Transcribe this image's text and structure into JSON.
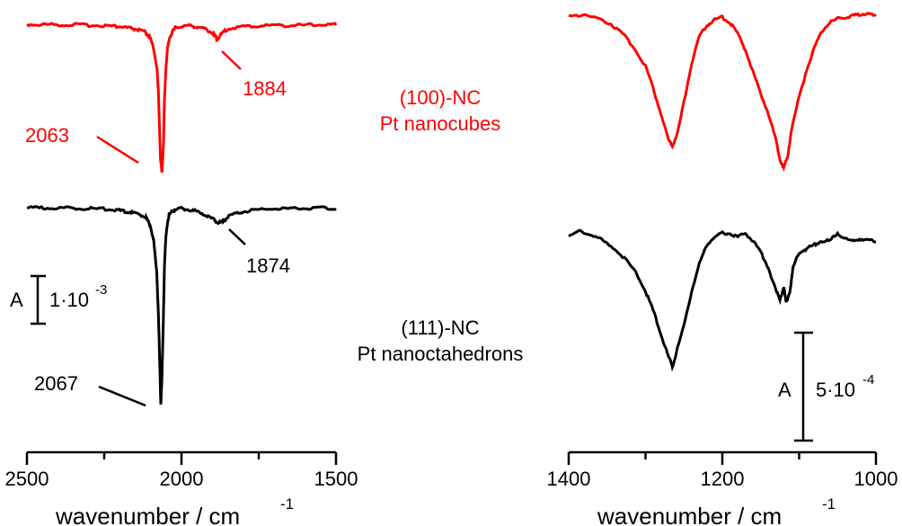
{
  "chart_data": [
    {
      "type": "line",
      "panel": "left",
      "xlabel": "wavenumber / cm",
      "xlabel_sup": "-1",
      "xlim": [
        2500,
        1500
      ],
      "xticks": [
        2500,
        2000,
        1500
      ],
      "scale_bar": {
        "symbol": "A",
        "value": "1·10",
        "exponent": "-3"
      },
      "series": [
        {
          "name": "(100)-NC Pt nanocubes",
          "color": "#ff0000",
          "baseline": 0,
          "x": [
            2500,
            2460,
            2420,
            2380,
            2340,
            2300,
            2260,
            2220,
            2200,
            2180,
            2160,
            2140,
            2120,
            2110,
            2100,
            2090,
            2080,
            2075,
            2070,
            2068,
            2063,
            2058,
            2055,
            2050,
            2045,
            2040,
            2030,
            2020,
            2000,
            1980,
            1960,
            1940,
            1920,
            1900,
            1890,
            1884,
            1875,
            1860,
            1840,
            1800,
            1760,
            1720,
            1680,
            1640,
            1600,
            1560,
            1520,
            1500
          ],
          "y": [
            0,
            0.05,
            0.02,
            0.08,
            0.03,
            0.1,
            0.12,
            0.2,
            0.25,
            0.35,
            0.45,
            0.6,
            0.8,
            1.1,
            1.6,
            2.6,
            4.5,
            7.0,
            12.0,
            14.5,
            15.8,
            12.5,
            8.0,
            4.5,
            2.6,
            1.6,
            0.8,
            0.4,
            0.2,
            0.15,
            0.2,
            0.35,
            0.55,
            0.9,
            1.3,
            1.6,
            1.2,
            0.7,
            0.4,
            0.25,
            0.2,
            0.12,
            0.1,
            0.12,
            0.08,
            0.05,
            0.05,
            0.05
          ]
        },
        {
          "name": "(111)-NC Pt nanoctahedrons",
          "color": "#000000",
          "baseline": 0,
          "x": [
            2500,
            2460,
            2420,
            2380,
            2340,
            2300,
            2260,
            2220,
            2200,
            2180,
            2160,
            2140,
            2120,
            2110,
            2100,
            2090,
            2080,
            2075,
            2070,
            2067,
            2063,
            2058,
            2055,
            2050,
            2045,
            2040,
            2030,
            2020,
            2000,
            1980,
            1960,
            1940,
            1920,
            1900,
            1885,
            1874,
            1865,
            1850,
            1830,
            1800,
            1760,
            1720,
            1680,
            1640,
            1600,
            1560,
            1520,
            1500
          ],
          "y": [
            0,
            0.03,
            0.05,
            0.02,
            0.05,
            0.1,
            0.12,
            0.2,
            0.3,
            0.4,
            0.5,
            0.7,
            0.9,
            1.3,
            2.0,
            3.5,
            7.0,
            11.0,
            17.0,
            21.0,
            18.0,
            11.0,
            6.0,
            3.0,
            1.5,
            0.8,
            0.4,
            0.2,
            0.1,
            0.15,
            0.3,
            0.5,
            0.8,
            1.2,
            1.5,
            1.6,
            1.4,
            1.0,
            0.7,
            0.4,
            0.25,
            0.15,
            0.12,
            0.1,
            0.08,
            0.05,
            0.05,
            0.05
          ]
        }
      ],
      "annotations": [
        {
          "text": "2063",
          "series": 0
        },
        {
          "text": "1884",
          "series": 0
        },
        {
          "text": "2067",
          "series": 1
        },
        {
          "text": "1874",
          "series": 1
        }
      ]
    },
    {
      "type": "line",
      "panel": "right",
      "xlabel": "wavenumber / cm",
      "xlabel_sup": "-1",
      "xlim": [
        1400,
        1000
      ],
      "xticks": [
        1400,
        1200,
        1000
      ],
      "scale_bar": {
        "symbol": "A",
        "value": "5·10",
        "exponent": "-4"
      },
      "series": [
        {
          "name": "(100)-NC Pt nanocubes",
          "color": "#ff0000",
          "baseline": 0,
          "x": [
            1400,
            1380,
            1360,
            1345,
            1330,
            1315,
            1300,
            1290,
            1280,
            1270,
            1265,
            1258,
            1250,
            1240,
            1230,
            1220,
            1210,
            1200,
            1190,
            1180,
            1170,
            1160,
            1150,
            1140,
            1130,
            1125,
            1120,
            1115,
            1110,
            1100,
            1090,
            1080,
            1070,
            1060,
            1050,
            1040,
            1030,
            1020,
            1010,
            1000
          ],
          "y": [
            0,
            0.05,
            0.15,
            0.35,
            0.7,
            1.2,
            1.9,
            2.7,
            3.6,
            4.6,
            4.8,
            4.3,
            3.2,
            1.8,
            0.8,
            0.4,
            0.2,
            0.1,
            0.3,
            0.7,
            1.3,
            2.1,
            2.9,
            3.6,
            4.6,
            5.3,
            5.6,
            5.2,
            4.2,
            3.0,
            2.0,
            1.2,
            0.6,
            0.3,
            0.15,
            0.1,
            0.05,
            0.0,
            -0.05,
            0.1
          ]
        },
        {
          "name": "(111)-NC Pt nanoctahedrons",
          "color": "#000000",
          "baseline": 0,
          "x": [
            1400,
            1385,
            1370,
            1355,
            1340,
            1325,
            1310,
            1300,
            1290,
            1280,
            1270,
            1265,
            1260,
            1250,
            1240,
            1230,
            1220,
            1210,
            1200,
            1190,
            1180,
            1170,
            1160,
            1150,
            1140,
            1130,
            1125,
            1120,
            1117,
            1112,
            1108,
            1100,
            1090,
            1080,
            1070,
            1060,
            1050,
            1040,
            1030,
            1020,
            1010,
            1000
          ],
          "y": [
            0.2,
            0.05,
            0.15,
            0.3,
            0.5,
            0.8,
            1.2,
            1.6,
            2.1,
            2.7,
            3.3,
            3.55,
            3.2,
            2.5,
            1.6,
            0.9,
            0.4,
            0.2,
            0.1,
            0.1,
            0.2,
            0.1,
            0.3,
            0.6,
            1.0,
            1.6,
            1.8,
            1.5,
            1.9,
            1.6,
            1.0,
            0.6,
            0.5,
            0.4,
            0.3,
            0.3,
            0.1,
            0.25,
            0.3,
            0.25,
            0.3,
            0.3
          ]
        }
      ]
    }
  ],
  "labels": {
    "nc100_line1": "(100)-NC",
    "nc100_line2": "Pt nanocubes",
    "nc111_line1": "(111)-NC",
    "nc111_line2": "Pt nanoctahedrons"
  }
}
